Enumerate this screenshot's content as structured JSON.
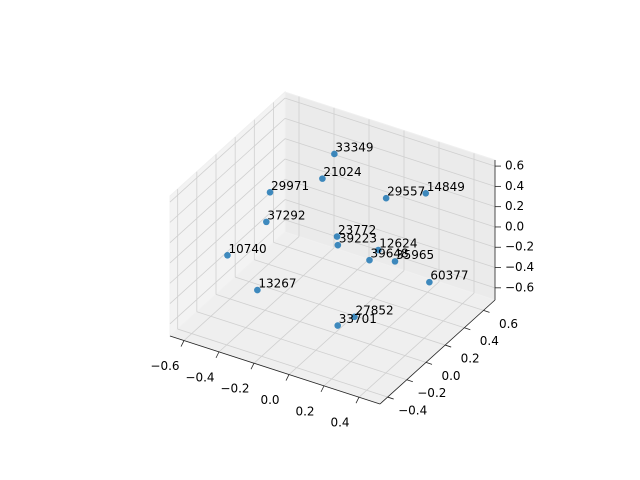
{
  "chart_data": {
    "type": "scatter3d",
    "labels": [
      "33349",
      "21024",
      "29557",
      "14849",
      "29971",
      "37292",
      "23772",
      "39223",
      "12624",
      "39648",
      "35965",
      "10740",
      "60377",
      "13267",
      "27852",
      "33701"
    ],
    "x": [
      -0.25,
      -0.28,
      -0.02,
      0.19,
      -0.47,
      -0.48,
      -0.18,
      -0.17,
      -0.01,
      0.0,
      0.08,
      -0.62,
      0.26,
      -0.46,
      0.04,
      0.01
    ],
    "y": [
      0.45,
      0.38,
      0.57,
      0.6,
      0.18,
      0.16,
      0.35,
      0.34,
      0.47,
      0.36,
      0.48,
      0.01,
      0.51,
      0.03,
      0.13,
      0.01
    ],
    "z": [
      0.52,
      0.32,
      0.11,
      0.25,
      0.25,
      -0.03,
      -0.17,
      -0.24,
      -0.31,
      -0.31,
      -0.38,
      -0.31,
      -0.51,
      -0.58,
      -0.65,
      -0.65
    ],
    "color": "#1f77b4",
    "xlim": [
      -0.68,
      0.52
    ],
    "ylim": [
      -0.48,
      0.72
    ],
    "zlim": [
      -0.72,
      0.66
    ],
    "xticks": [
      {
        "value": -0.6,
        "label": "−0.6"
      },
      {
        "value": -0.4,
        "label": "−0.4"
      },
      {
        "value": -0.2,
        "label": "−0.2"
      },
      {
        "value": 0,
        "label": "0.0"
      },
      0.2,
      0.4
    ],
    "yticks": [
      {
        "value": -0.4,
        "label": "−0.4"
      },
      {
        "value": -0.2,
        "label": "−0.2"
      },
      {
        "value": 0,
        "label": "0.0"
      },
      0.2,
      0.4,
      0.6
    ],
    "zticks": [
      {
        "value": -0.6,
        "label": "−0.6"
      },
      {
        "value": -0.4,
        "label": "−0.4"
      },
      {
        "value": -0.2,
        "label": "−0.2"
      },
      {
        "value": 0,
        "label": "0.0"
      },
      0.2,
      0.4,
      0.6
    ],
    "grid": true
  }
}
